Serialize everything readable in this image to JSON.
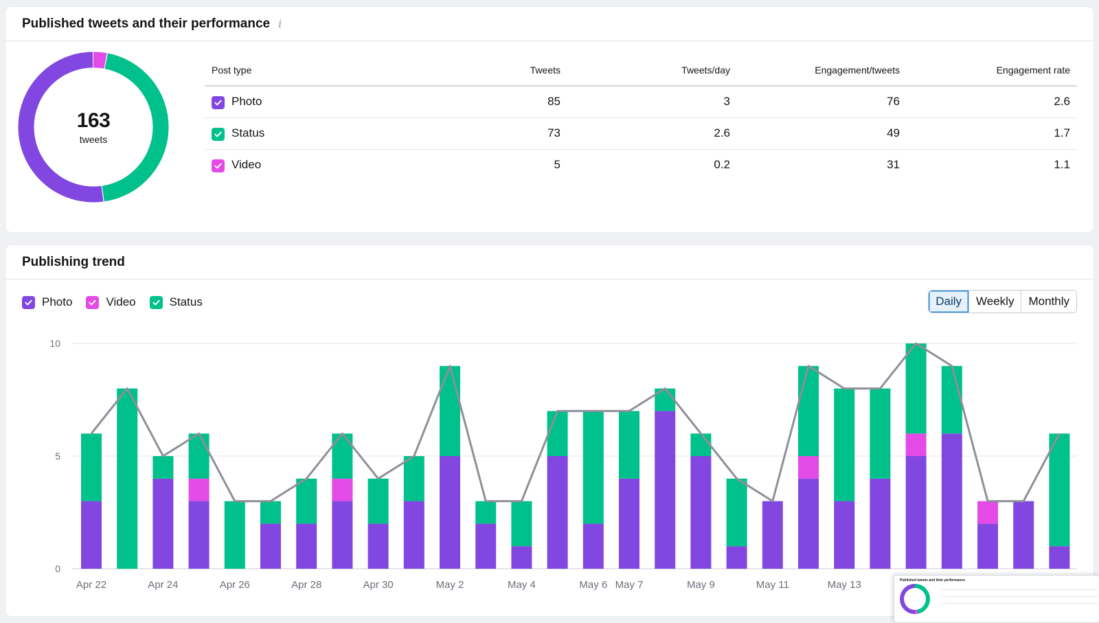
{
  "performance": {
    "title": "Published tweets and their performance",
    "info_icon": "i",
    "donut": {
      "total": "163",
      "unit": "tweets"
    },
    "columns": [
      "Post type",
      "Tweets",
      "Tweets/day",
      "Engagement/tweets",
      "Engagement rate"
    ],
    "rows": [
      {
        "type": "Photo",
        "color": "#8147e0",
        "tweets": 85,
        "tweets_per_day": "3",
        "engagement_per_tweet": "76",
        "engagement_rate": "2.6"
      },
      {
        "type": "Status",
        "color": "#00c08b",
        "tweets": 73,
        "tweets_per_day": "2.6",
        "engagement_per_tweet": "49",
        "engagement_rate": "1.7"
      },
      {
        "type": "Video",
        "color": "#e34ae6",
        "tweets": 5,
        "tweets_per_day": "0.2",
        "engagement_per_tweet": "31",
        "engagement_rate": "1.1"
      }
    ]
  },
  "trend": {
    "title": "Publishing trend",
    "legend": [
      {
        "label": "Photo",
        "color": "#8147e0"
      },
      {
        "label": "Video",
        "color": "#e34ae6"
      },
      {
        "label": "Status",
        "color": "#00c08b"
      }
    ],
    "periods": [
      "Daily",
      "Weekly",
      "Monthly"
    ],
    "active_period": "Daily"
  },
  "chart_data": {
    "type": "bar",
    "stacked": true,
    "categories": [
      "Apr 22",
      "Apr 23",
      "Apr 24",
      "Apr 25",
      "Apr 26",
      "Apr 27",
      "Apr 28",
      "Apr 29",
      "Apr 30",
      "May 1",
      "May 2",
      "May 3",
      "May 4",
      "May 5",
      "May 6",
      "May 7",
      "May 8",
      "May 9",
      "May 10",
      "May 11",
      "May 12",
      "May 13",
      "May 14",
      "May 15",
      "May 16",
      "May 17",
      "May 18",
      "May 19"
    ],
    "x_tick_labels": [
      "Apr 22",
      "Apr 24",
      "Apr 26",
      "Apr 28",
      "Apr 30",
      "May 2",
      "May 4",
      "May 6",
      "May 7",
      "May 9",
      "May 11",
      "May 13"
    ],
    "series": [
      {
        "name": "Photo",
        "color": "#8147e0",
        "values": [
          3,
          0,
          4,
          3,
          0,
          2,
          2,
          3,
          2,
          3,
          5,
          2,
          1,
          5,
          2,
          4,
          7,
          5,
          1,
          3,
          4,
          3,
          4,
          5,
          6,
          2,
          3,
          1
        ]
      },
      {
        "name": "Video",
        "color": "#e34ae6",
        "values": [
          0,
          0,
          0,
          1,
          0,
          0,
          0,
          1,
          0,
          0,
          0,
          0,
          0,
          0,
          0,
          0,
          0,
          0,
          0,
          0,
          1,
          0,
          0,
          1,
          0,
          1,
          0,
          0
        ]
      },
      {
        "name": "Status",
        "color": "#00c08b",
        "values": [
          3,
          8,
          1,
          2,
          3,
          1,
          2,
          2,
          2,
          2,
          4,
          1,
          2,
          2,
          5,
          3,
          1,
          1,
          3,
          0,
          4,
          5,
          4,
          4,
          3,
          0,
          0,
          5
        ]
      }
    ],
    "total_line": {
      "name": "Total",
      "color": "#8e8f99",
      "values": [
        6,
        8,
        5,
        6,
        3,
        3,
        4,
        6,
        4,
        5,
        9,
        3,
        3,
        7,
        7,
        7,
        8,
        6,
        4,
        3,
        9,
        8,
        8,
        10,
        9,
        3,
        3,
        6
      ]
    },
    "yticks": [
      0,
      5,
      10
    ],
    "ylim": [
      0,
      10
    ],
    "xlabel": "",
    "ylabel": "",
    "title": "Publishing trend"
  }
}
